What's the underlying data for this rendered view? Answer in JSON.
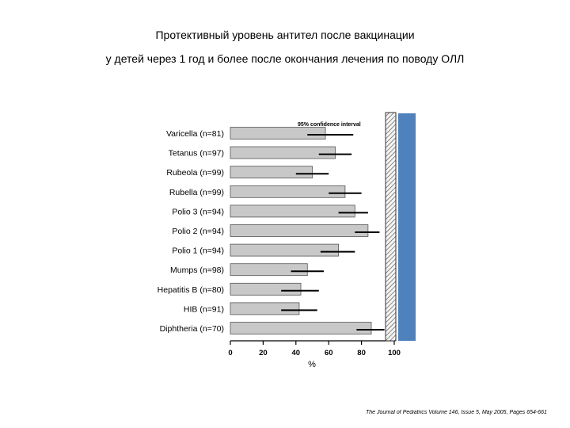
{
  "header": {
    "title_line1": "Протективный уровень антител после вакцинации",
    "title_line2": "у детей через 1 год и более после окончания лечения по поводу ОЛЛ"
  },
  "citation": "The Journal of Pediatrics Volume 146, Issue 5, May 2005, Pages 654-661",
  "chart_data": {
    "type": "bar",
    "orientation": "horizontal",
    "categories": [
      "Varicella (n=81)",
      "Tetanus (n=97)",
      "Rubeola (n=99)",
      "Rubella (n=99)",
      "Polio 3 (n=94)",
      "Polio 2 (n=94)",
      "Polio 1 (n=94)",
      "Mumps (n=98)",
      "Hepatitis B (n=80)",
      "HIB (n=91)",
      "Diphtheria (n=70)"
    ],
    "values": [
      58,
      64,
      50,
      70,
      76,
      84,
      66,
      47,
      43,
      42,
      86
    ],
    "ci_low": [
      47,
      54,
      40,
      60,
      66,
      76,
      55,
      37,
      31,
      31,
      77
    ],
    "ci_high": [
      75,
      74,
      60,
      80,
      84,
      91,
      76,
      57,
      54,
      53,
      94
    ],
    "xlabel": "%",
    "xlim": [
      0,
      100
    ],
    "xticks": [
      0,
      20,
      40,
      60,
      80,
      100
    ],
    "legend_label": "95% confidence interval",
    "grid": false,
    "colors": {
      "bar_fill": "#c8c8c8",
      "bar_stroke": "#555555",
      "ci_line": "#000000",
      "side_panel": "#4f81bd"
    }
  }
}
